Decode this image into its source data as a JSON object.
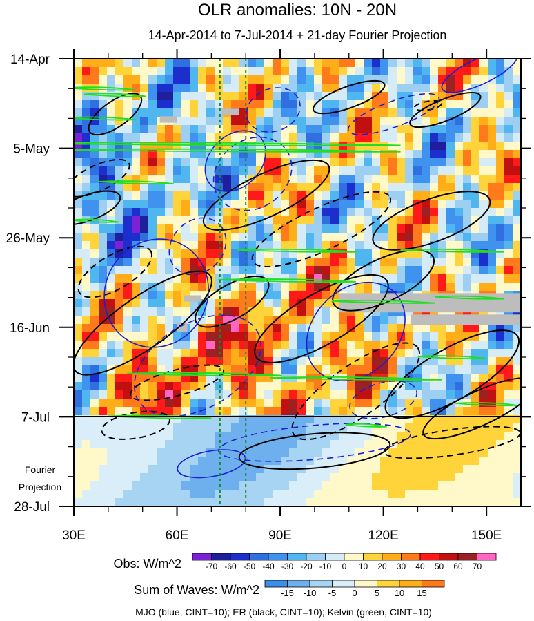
{
  "chart_data": {
    "type": "heatmap",
    "title": "OLR anomalies: 10N - 20N",
    "subtitle": "14-Apr-2014 to 7-Jul-2014 + 21-day Fourier Projection",
    "x_axis": {
      "ticks": [
        {
          "value": 30,
          "label": "30E"
        },
        {
          "value": 60,
          "label": "60E"
        },
        {
          "value": 90,
          "label": "90E"
        },
        {
          "value": 120,
          "label": "120E"
        },
        {
          "value": 150,
          "label": "150E"
        }
      ],
      "range": [
        30,
        160
      ]
    },
    "y_axis": {
      "ticks": [
        {
          "value": 0,
          "label": "14-Apr"
        },
        {
          "value": 21,
          "label": "5-May"
        },
        {
          "value": 42,
          "label": "26-May"
        },
        {
          "value": 63,
          "label": "16-Jun"
        },
        {
          "value": 84,
          "label": "7-Jul"
        },
        {
          "value": 105,
          "label": "28-Jul"
        }
      ],
      "range": [
        0,
        105
      ],
      "reversed": true
    },
    "observation_end": {
      "label": "7-Jul",
      "value": 84
    },
    "projection_label": [
      "Fourier",
      "Projection"
    ],
    "reference_lines_lon": [
      72.5,
      80
    ],
    "obs_colorbar": {
      "label": "Obs: W/m^2",
      "levels": [
        "-70",
        "-60",
        "-50",
        "-40",
        "-30",
        "-20",
        "-10",
        "0",
        "10",
        "20",
        "30",
        "40",
        "50",
        "60",
        "70"
      ],
      "colors": [
        "#7c22d6",
        "#1f1f9c",
        "#1c2fcc",
        "#2f6fe0",
        "#3f93ee",
        "#4fb6f0",
        "#9dcff2",
        "#d5ecf7",
        "#fff8c8",
        "#ffd43a",
        "#ffae1a",
        "#ff7a1a",
        "#ff1a1a",
        "#c01010",
        "#9a2222",
        "#ff66c4"
      ]
    },
    "waves_colorbar": {
      "label": "Sum of Waves: W/m^2",
      "levels": [
        "-15",
        "-10",
        "-5",
        "0",
        "5",
        "10",
        "15"
      ],
      "colors": [
        "#3d8ee8",
        "#6eb0ee",
        "#a8d4f4",
        "#d9eef9",
        "#fff8c8",
        "#ffd43a",
        "#ffae1a",
        "#ff7a1a"
      ]
    },
    "legend_note": "MJO (blue, CINT=10); ER (black, CINT=10); Kelvin (green, CINT=10)",
    "series": [
      {
        "name": "MJO",
        "color": "#1c1fd0",
        "contour_interval": 10
      },
      {
        "name": "ER",
        "color": "#000000",
        "contour_interval": 10
      },
      {
        "name": "Kelvin",
        "color": "#22dd22",
        "contour_interval": 10
      }
    ],
    "missing_data_color": "#bdbdbd"
  }
}
